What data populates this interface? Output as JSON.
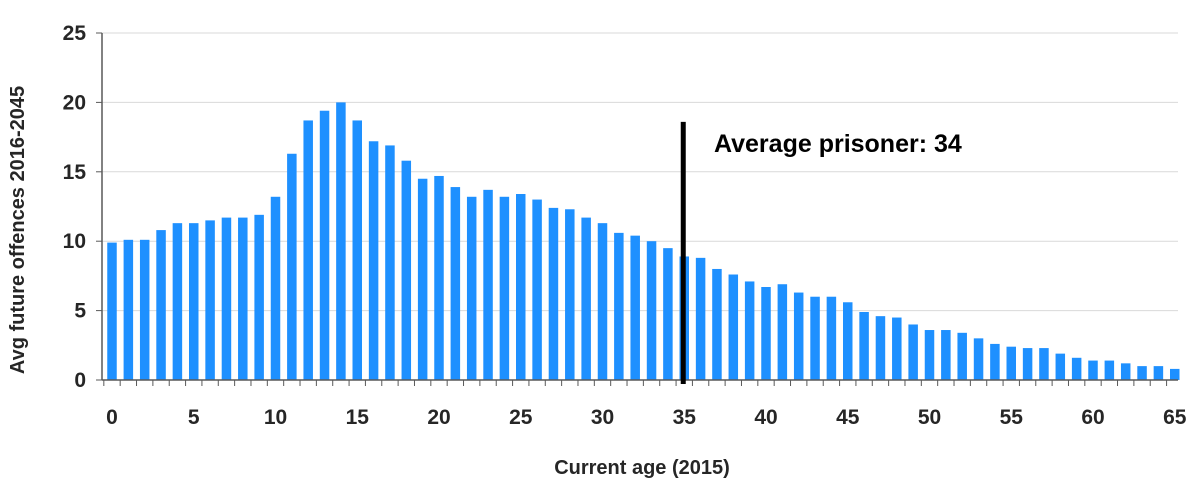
{
  "chart_data": {
    "type": "bar",
    "title": "",
    "xlabel": "Current age (2015)",
    "ylabel": "Avg future offences 2016-2045",
    "x": [
      0,
      1,
      2,
      3,
      4,
      5,
      6,
      7,
      8,
      9,
      10,
      11,
      12,
      13,
      14,
      15,
      16,
      17,
      18,
      19,
      20,
      21,
      22,
      23,
      24,
      25,
      26,
      27,
      28,
      29,
      30,
      31,
      32,
      33,
      34,
      35,
      36,
      37,
      38,
      39,
      40,
      41,
      42,
      43,
      44,
      45,
      46,
      47,
      48,
      49,
      50,
      51,
      52,
      53,
      54,
      55,
      56,
      57,
      58,
      59,
      60,
      61,
      62,
      63,
      64,
      65
    ],
    "values": [
      9.9,
      10.1,
      10.1,
      10.8,
      11.3,
      11.3,
      11.5,
      11.7,
      11.7,
      11.9,
      13.2,
      16.3,
      18.7,
      19.4,
      20.0,
      18.7,
      17.2,
      16.9,
      15.8,
      14.5,
      14.7,
      13.9,
      13.2,
      13.7,
      13.2,
      13.4,
      13.0,
      12.4,
      12.3,
      11.7,
      11.3,
      10.6,
      10.4,
      10.0,
      9.5,
      8.9,
      8.8,
      8.0,
      7.6,
      7.1,
      6.7,
      6.9,
      6.3,
      6.0,
      6.0,
      5.6,
      4.9,
      4.6,
      4.5,
      4.0,
      3.6,
      3.6,
      3.4,
      3.0,
      2.6,
      2.4,
      2.3,
      2.3,
      1.9,
      1.6,
      1.4,
      1.4,
      1.2,
      1.0,
      1.0,
      0.8
    ],
    "xticks": [
      "0",
      "5",
      "10",
      "15",
      "20",
      "25",
      "30",
      "35",
      "40",
      "45",
      "50",
      "55",
      "60",
      "65"
    ],
    "yticks": [
      "0",
      "5",
      "10",
      "15",
      "20",
      "25"
    ],
    "ylim": [
      0,
      25
    ],
    "xlim": [
      0,
      65
    ],
    "grid": true,
    "bar_color": "#1e90ff",
    "marker_line": {
      "x": 35,
      "top": 18.6,
      "color": "#000000"
    },
    "annotation": "Average prisoner: 34"
  }
}
